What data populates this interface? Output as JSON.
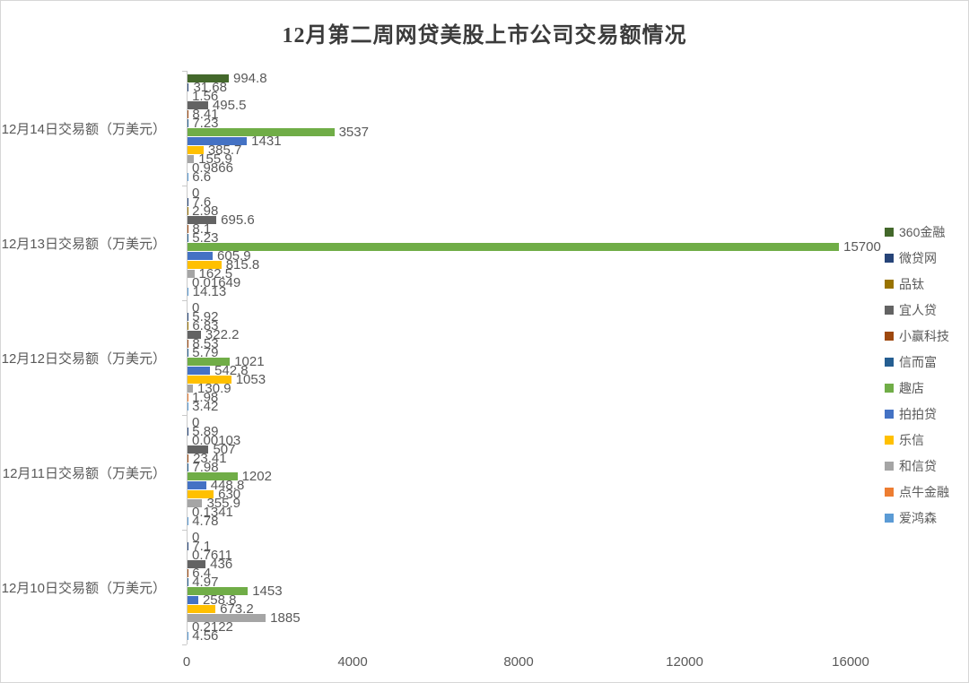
{
  "title": "12月第二周网贷美股上市公司交易额情况",
  "chart_data": {
    "type": "bar",
    "orientation": "horizontal",
    "title": "12月第二周网贷美股上市公司交易额情况",
    "unit": "万美元",
    "categories": [
      "12月14日交易额（万美元）",
      "12月13日交易额（万美元）",
      "12月12日交易额（万美元）",
      "12月11日交易额（万美元）",
      "12月10日交易额（万美元）"
    ],
    "xlim": [
      0,
      16000
    ],
    "x_ticks": [
      "0",
      "4000",
      "8000",
      "12000",
      "16000"
    ],
    "grid": false,
    "legend_position": "right",
    "series": [
      {
        "name": "360金融",
        "color": "#43682B",
        "values": [
          994.8,
          0,
          0,
          0,
          0
        ],
        "labels": [
          "994.8",
          "0",
          "0",
          "0",
          "0"
        ]
      },
      {
        "name": "微贷网",
        "color": "#264478",
        "values": [
          31.68,
          7.6,
          5.92,
          5.89,
          7.1
        ],
        "labels": [
          "31.68",
          "7.6",
          "5.92",
          "5.89",
          "7.1"
        ]
      },
      {
        "name": "品钛",
        "color": "#997300",
        "values": [
          1.56,
          2.98,
          6.83,
          0.00103,
          0.7611
        ],
        "labels": [
          "1.56",
          "2.98",
          "6.83",
          "0.00103",
          "0.7611"
        ]
      },
      {
        "name": "宜人贷",
        "color": "#636363",
        "values": [
          495.5,
          695.6,
          322.2,
          507,
          436
        ],
        "labels": [
          "495.5",
          "695.6",
          "322.2",
          "507",
          "436"
        ]
      },
      {
        "name": "小赢科技",
        "color": "#9E480E",
        "values": [
          8.41,
          8.1,
          8.53,
          23.41,
          6.4
        ],
        "labels": [
          "8.41",
          "8.1",
          "8.53",
          "23.41",
          "6.4"
        ]
      },
      {
        "name": "信而富",
        "color": "#255E91",
        "values": [
          7.23,
          5.23,
          5.79,
          7.98,
          4.97
        ],
        "labels": [
          "7.23",
          "5.23",
          "5.79",
          "7.98",
          "4.97"
        ]
      },
      {
        "name": "趣店",
        "color": "#70AD47",
        "values": [
          3537,
          15700,
          1021,
          1202,
          1453
        ],
        "labels": [
          "3537",
          "15700",
          "1021",
          "1202",
          "1453"
        ]
      },
      {
        "name": "拍拍贷",
        "color": "#4472C4",
        "values": [
          1431,
          605.9,
          542.8,
          448.8,
          258.8
        ],
        "labels": [
          "1431",
          "605.9",
          "542.8",
          "448.8",
          "258.8"
        ]
      },
      {
        "name": "乐信",
        "color": "#FFC000",
        "values": [
          385.7,
          815.8,
          1053,
          630,
          673.2
        ],
        "labels": [
          "385.7",
          "815.8",
          "1053",
          "630",
          "673.2"
        ]
      },
      {
        "name": "和信贷",
        "color": "#A5A5A5",
        "values": [
          155.9,
          162.5,
          130.9,
          355.9,
          1885
        ],
        "labels": [
          "155.9",
          "162.5",
          "130.9",
          "355.9",
          "1885"
        ]
      },
      {
        "name": "点牛金融",
        "color": "#ED7D31",
        "values": [
          0.9866,
          0.01649,
          1.98,
          0.1341,
          0.2122
        ],
        "labels": [
          "0.9866",
          "0.01649",
          "1.98",
          "0.1341",
          "0.2122"
        ]
      },
      {
        "name": "爱鸿森",
        "color": "#5B9BD5",
        "values": [
          6.6,
          14.13,
          3.42,
          4.78,
          4.56
        ],
        "labels": [
          "6.6",
          "14.13",
          "3.42",
          "4.78",
          "4.56"
        ]
      }
    ]
  }
}
